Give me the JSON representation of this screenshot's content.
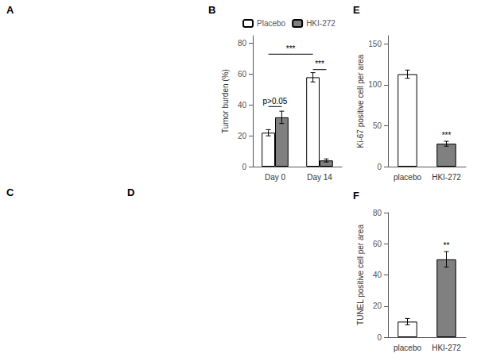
{
  "chart_data": [
    {
      "type": "image",
      "title": "A"
    },
    {
      "type": "bar",
      "title": "B",
      "categories": [
        "Day 0",
        "Day 14"
      ],
      "series": [
        {
          "name": "Placebo",
          "color": "#ffffff",
          "values": [
            22,
            58
          ],
          "errors": [
            2,
            3
          ]
        },
        {
          "name": "HKI-272",
          "color": "#808080",
          "values": [
            32,
            4
          ],
          "errors": [
            4,
            1
          ]
        }
      ],
      "ylabel": "Tumor burden (%)",
      "ylim": [
        0,
        85
      ],
      "yticks": [
        0,
        20,
        40,
        60,
        80
      ],
      "grid": false,
      "legend": "upper left",
      "annotations": [
        {
          "text": "p>0.05",
          "y": 39,
          "from": {
            "category": "Day 0",
            "series": "Placebo"
          },
          "to": {
            "category": "Day 0",
            "series": "HKI-272"
          }
        },
        {
          "text": "***",
          "y": 73,
          "from": {
            "category": "Day 0",
            "series": "Placebo"
          },
          "to": {
            "category": "Day 14",
            "series": "Placebo"
          }
        },
        {
          "text": "***",
          "y": 63,
          "from": {
            "category": "Day 14",
            "series": "Placebo"
          },
          "to": {
            "category": "Day 14",
            "series": "HKI-272"
          }
        }
      ]
    },
    {
      "type": "bar",
      "title": "E",
      "categories": [
        "placebo",
        "HKI-272"
      ],
      "values": [
        113,
        28
      ],
      "errors": [
        5,
        3
      ],
      "colors": [
        "#ffffff",
        "#808080"
      ],
      "ylabel": "Ki-67 positive cell per area",
      "ylim": [
        0,
        160
      ],
      "yticks": [
        0,
        50,
        100,
        150
      ],
      "grid": false,
      "annotations": [
        {
          "text": "***",
          "category": "HKI-272"
        }
      ]
    },
    {
      "type": "image",
      "title": "C"
    },
    {
      "type": "image",
      "title": "D"
    },
    {
      "type": "bar",
      "title": "F",
      "categories": [
        "placebo",
        "HKI-272"
      ],
      "values": [
        10,
        50
      ],
      "errors": [
        2,
        5
      ],
      "colors": [
        "#ffffff",
        "#808080"
      ],
      "ylabel": "TUNEL positive cell per area",
      "ylim": [
        0,
        80
      ],
      "yticks": [
        0,
        20,
        40,
        60,
        80
      ],
      "grid": false,
      "annotations": [
        {
          "text": "**",
          "category": "HKI-272"
        }
      ]
    }
  ]
}
